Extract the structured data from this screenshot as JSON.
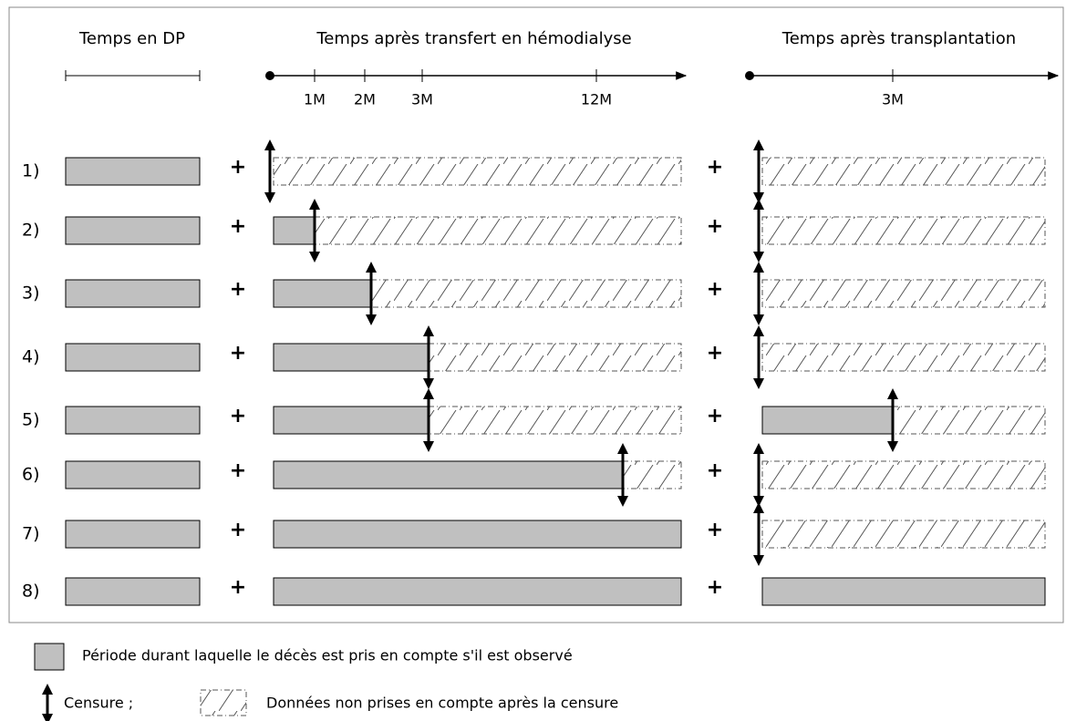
{
  "headers": [
    "Temps en DP",
    "Temps après transfert en hémodialyse",
    "Temps après transplantation"
  ],
  "hd_ticks": [
    "1M",
    "2M",
    "3M",
    "12M"
  ],
  "tx_ticks": [
    "3M"
  ],
  "operator": "+",
  "rows": [
    "1)",
    "2)",
    "3)",
    "4)",
    "5)",
    "6)",
    "7)",
    "8)"
  ],
  "legend": {
    "observed": "Période durant laquelle le décès est pris en compte s'il est observé",
    "censure": "Censure ;",
    "ignored": "Données non prises en compte après la censure"
  }
}
